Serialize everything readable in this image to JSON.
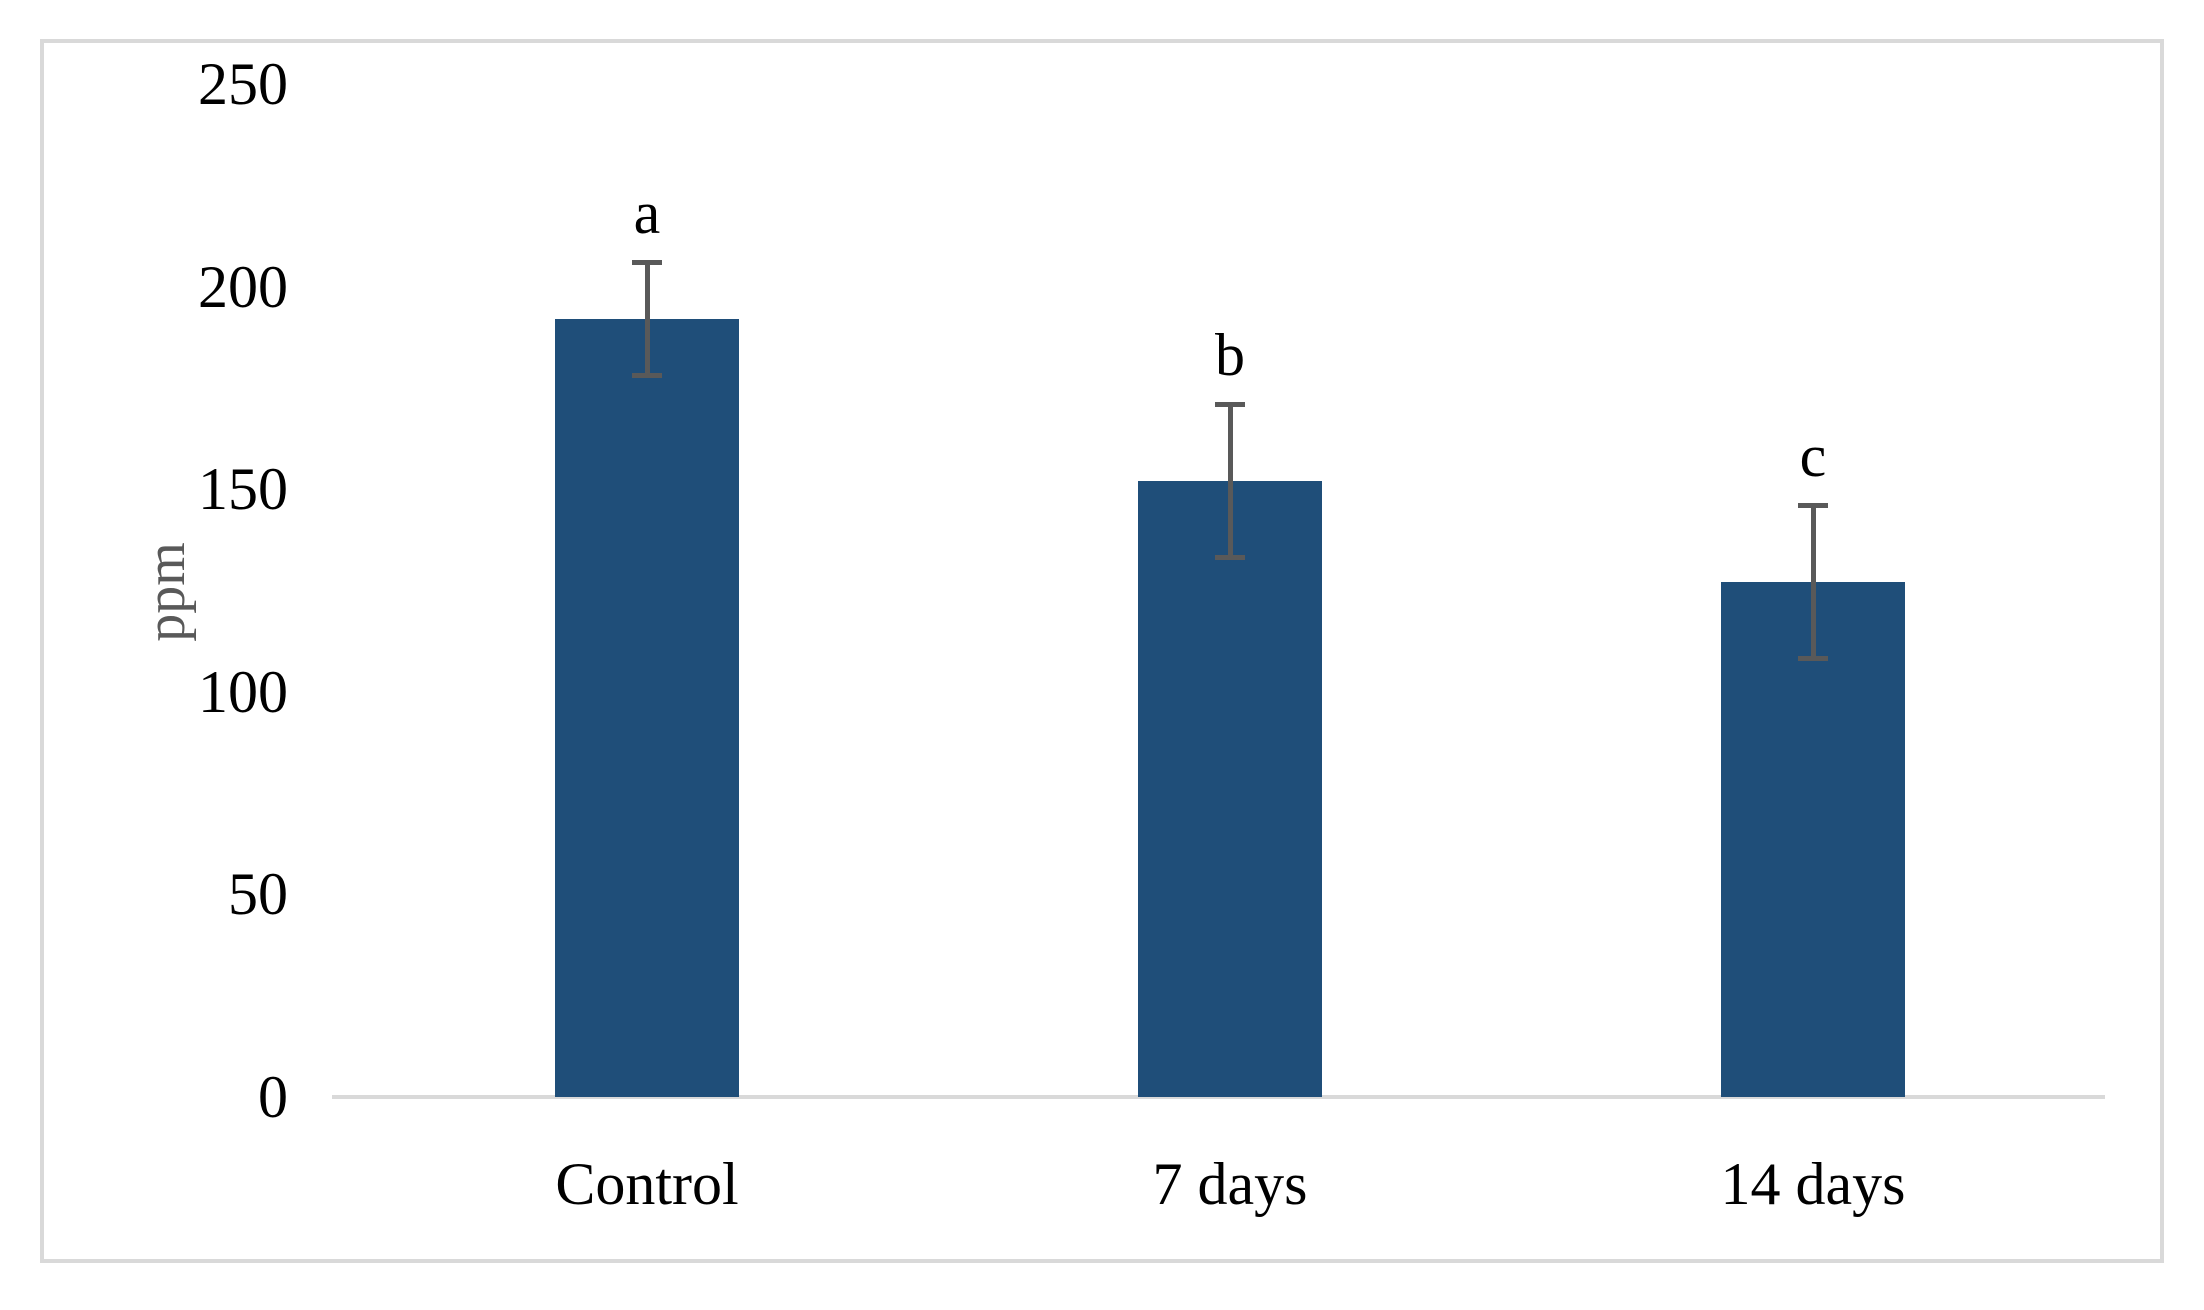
{
  "chart_data": {
    "type": "bar",
    "categories": [
      "Control",
      "7 days",
      "14 days"
    ],
    "values": [
      192,
      152,
      127
    ],
    "error_bars": [
      14.5,
      19.5,
      19.5
    ],
    "significance_letters": [
      "a",
      "b",
      "c"
    ],
    "title": "",
    "xlabel": "",
    "ylabel": "ppm",
    "yticks": [
      0,
      50,
      100,
      150,
      200,
      250
    ],
    "ylim": [
      0,
      250
    ],
    "grid": false,
    "legend": false,
    "colors": {
      "bar": "#1F4E79",
      "error_bar": "#595959",
      "axis_line": "#D9D9D9",
      "frame_border": "#D9D9D9",
      "tick_label": "#000000",
      "y_axis_title": "#595959",
      "category_label": "#000000",
      "background": "#FFFFFF"
    }
  }
}
